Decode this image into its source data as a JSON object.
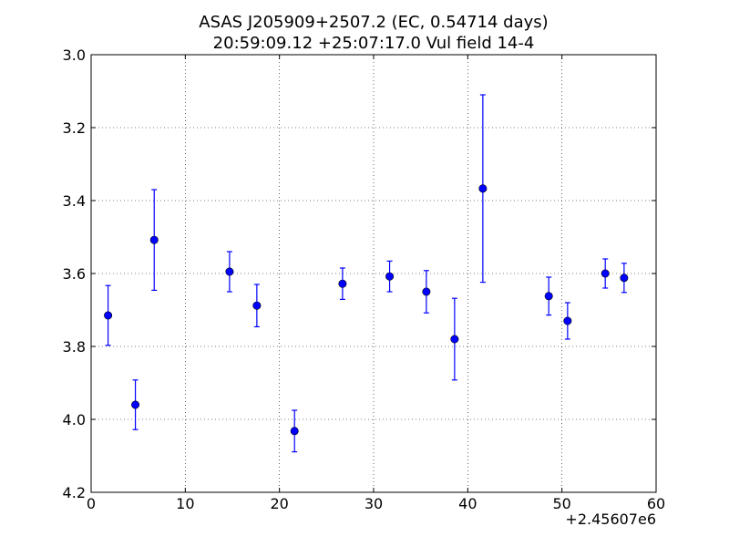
{
  "chart_data": {
    "type": "scatter",
    "title_line1": "ASAS J205909+2507.2 (EC, 0.54714 days)",
    "title_line2": "20:59:09.12 +25:07:17.0 Vul field 14-4",
    "xlabel": "",
    "ylabel": "",
    "x_offset_label": "+2.45607e6",
    "xlim": [
      0,
      60
    ],
    "ylim": [
      3.0,
      4.2
    ],
    "y_inverted": true,
    "grid": true,
    "x_ticks": [
      0,
      10,
      20,
      30,
      40,
      50,
      60
    ],
    "x_tick_labels": [
      "0",
      "10",
      "20",
      "30",
      "40",
      "50",
      "60"
    ],
    "y_ticks": [
      3.0,
      3.2,
      3.4,
      3.6,
      3.8,
      4.0,
      4.2
    ],
    "y_tick_labels": [
      "3.0",
      "3.2",
      "3.4",
      "3.6",
      "3.8",
      "4.0",
      "4.2"
    ],
    "marker_color": "#0000ff",
    "points": [
      {
        "x": 1.8,
        "y": 3.715,
        "err": 0.082
      },
      {
        "x": 4.7,
        "y": 3.96,
        "err": 0.068
      },
      {
        "x": 6.7,
        "y": 3.508,
        "err": 0.138
      },
      {
        "x": 14.7,
        "y": 3.595,
        "err": 0.055
      },
      {
        "x": 17.6,
        "y": 3.688,
        "err": 0.058
      },
      {
        "x": 21.6,
        "y": 4.032,
        "err": 0.057
      },
      {
        "x": 26.7,
        "y": 3.628,
        "err": 0.043
      },
      {
        "x": 31.7,
        "y": 3.608,
        "err": 0.042
      },
      {
        "x": 35.6,
        "y": 3.65,
        "err": 0.058
      },
      {
        "x": 38.6,
        "y": 3.78,
        "err": 0.112
      },
      {
        "x": 41.6,
        "y": 3.367,
        "err": 0.257
      },
      {
        "x": 48.6,
        "y": 3.662,
        "err": 0.052
      },
      {
        "x": 50.6,
        "y": 3.73,
        "err": 0.05
      },
      {
        "x": 54.6,
        "y": 3.6,
        "err": 0.04
      },
      {
        "x": 56.6,
        "y": 3.612,
        "err": 0.04
      }
    ]
  }
}
